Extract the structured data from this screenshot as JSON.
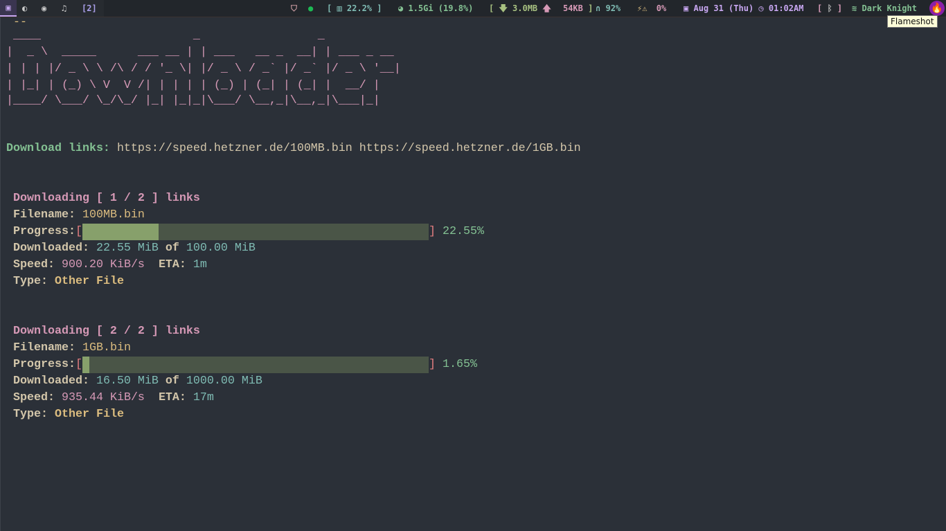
{
  "topbar": {
    "workspaces": [
      {
        "icon": "terminal-icon",
        "glyph": "▣",
        "active": true
      },
      {
        "icon": "browser-icon",
        "glyph": "◐"
      },
      {
        "icon": "github-icon",
        "glyph": "◉"
      },
      {
        "icon": "music-icon",
        "glyph": "♫"
      }
    ],
    "workspace_count": "[2]",
    "cpu": "22.2%",
    "memory": "1.5Gi (19.8%)",
    "net_down": "3.0MB",
    "net_up": "54KB",
    "headphones": "92%",
    "battery": "0%",
    "date": "Aug 31 (Thu)",
    "time": "01:02AM",
    "wifi": "Dark Knight",
    "tooltip": "Flameshot",
    "colors": {
      "bar_bg": "#22262b",
      "accent": "#c7a6f0",
      "green": "#83c092",
      "pink": "#d699b6",
      "yellow": "#dbbc7f"
    }
  },
  "terminal": {
    "prompt_fragment": "--",
    "banner": [
      " ____                      _                 _",
      "|  _ \\  _____      ___ __ | | ___   __ _  __| | ___ _ __",
      "| | | |/ _ \\ \\ /\\ / / '_ \\| |/ _ \\ / _` |/ _` |/ _ \\ '__|",
      "| |_| | (_) \\ V  V /| | | | | (_) | (_| | (_| |  __/ |",
      "|____/ \\___/ \\_/\\_/ |_| |_|_|\\___/ \\__,_|\\__,_|\\___|_|"
    ],
    "links_label": "Download links:",
    "links": "https://speed.hetzner.de/100MB.bin https://speed.hetzner.de/1GB.bin",
    "downloads": [
      {
        "header": "Downloading [ 1 / 2 ] links",
        "filename_label": "Filename:",
        "filename": "100MB.bin",
        "progress_label": "Progress:",
        "progress_percent": 22.55,
        "progress_text": "22.55%",
        "downloaded_label": "Downloaded:",
        "downloaded": "22.55 MiB",
        "of": "of",
        "total": "100.00 MiB",
        "speed_label": "Speed:",
        "speed": "900.20 KiB/s",
        "eta_label": "ETA:",
        "eta": "1m",
        "type_label": "Type:",
        "type": "Other File"
      },
      {
        "header": "Downloading [ 2 / 2 ] links",
        "filename_label": "Filename:",
        "filename": "1GB.bin",
        "progress_label": "Progress:",
        "progress_percent": 1.65,
        "progress_text": "1.65%",
        "downloaded_label": "Downloaded:",
        "downloaded": "16.50 MiB",
        "of": "of",
        "total": "1000.00 MiB",
        "speed_label": "Speed:",
        "speed": "935.44 KiB/s",
        "eta_label": "ETA:",
        "eta": "17m",
        "type_label": "Type:",
        "type": "Other File"
      }
    ]
  }
}
